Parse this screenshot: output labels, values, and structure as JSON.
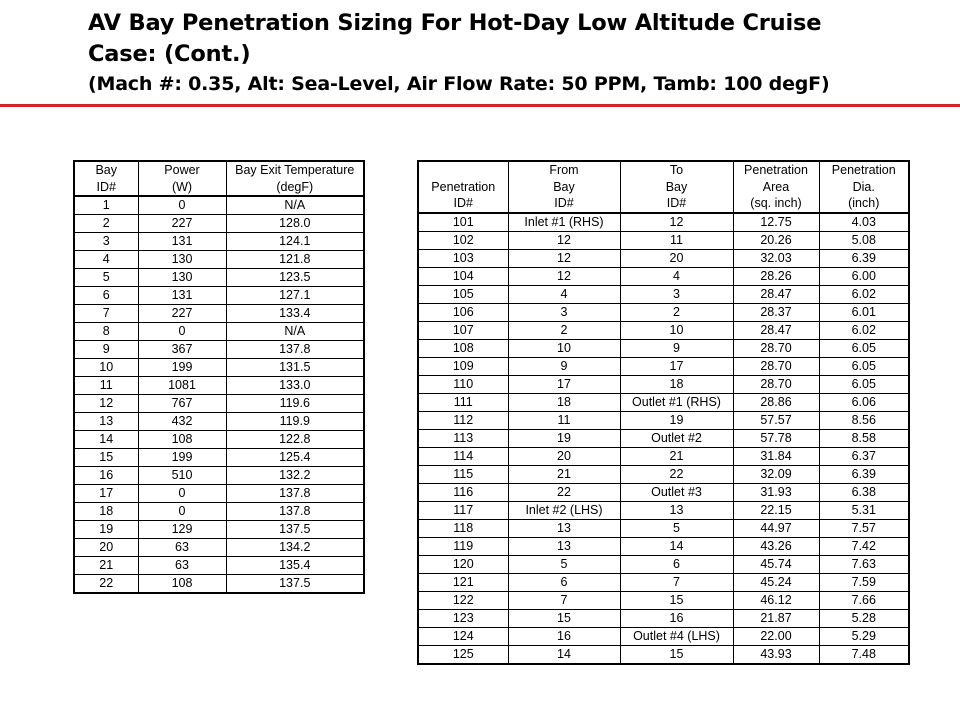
{
  "title": {
    "line1": "AV Bay Penetration Sizing For Hot-Day Low Altitude Cruise",
    "line2": "Case: (Cont.)",
    "line3": "(Mach #: 0.35, Alt: Sea-Level, Air Flow Rate: 50 PPM, Tamb: 100 degF)"
  },
  "accent_color": "#d2232a",
  "bay_table": {
    "headers": [
      [
        "Bay",
        "ID#"
      ],
      [
        "Power",
        "(W)"
      ],
      [
        "Bay Exit Temperature",
        "(degF)"
      ]
    ],
    "rows": [
      [
        "1",
        "0",
        "N/A"
      ],
      [
        "2",
        "227",
        "128.0"
      ],
      [
        "3",
        "131",
        "124.1"
      ],
      [
        "4",
        "130",
        "121.8"
      ],
      [
        "5",
        "130",
        "123.5"
      ],
      [
        "6",
        "131",
        "127.1"
      ],
      [
        "7",
        "227",
        "133.4"
      ],
      [
        "8",
        "0",
        "N/A"
      ],
      [
        "9",
        "367",
        "137.8"
      ],
      [
        "10",
        "199",
        "131.5"
      ],
      [
        "11",
        "1081",
        "133.0"
      ],
      [
        "12",
        "767",
        "119.6"
      ],
      [
        "13",
        "432",
        "119.9"
      ],
      [
        "14",
        "108",
        "122.8"
      ],
      [
        "15",
        "199",
        "125.4"
      ],
      [
        "16",
        "510",
        "132.2"
      ],
      [
        "17",
        "0",
        "137.8"
      ],
      [
        "18",
        "0",
        "137.8"
      ],
      [
        "19",
        "129",
        "137.5"
      ],
      [
        "20",
        "63",
        "134.2"
      ],
      [
        "21",
        "63",
        "135.4"
      ],
      [
        "22",
        "108",
        "137.5"
      ]
    ]
  },
  "penetration_table": {
    "headers": [
      [
        "",
        "Penetration",
        "ID#"
      ],
      [
        "From",
        "Bay",
        "ID#"
      ],
      [
        "To",
        "Bay",
        "ID#"
      ],
      [
        "Penetration",
        "Area",
        "(sq. inch)"
      ],
      [
        "Penetration",
        "Dia.",
        "(inch)"
      ]
    ],
    "rows": [
      [
        "101",
        "Inlet #1 (RHS)",
        "12",
        "12.75",
        "4.03"
      ],
      [
        "102",
        "12",
        "11",
        "20.26",
        "5.08"
      ],
      [
        "103",
        "12",
        "20",
        "32.03",
        "6.39"
      ],
      [
        "104",
        "12",
        "4",
        "28.26",
        "6.00"
      ],
      [
        "105",
        "4",
        "3",
        "28.47",
        "6.02"
      ],
      [
        "106",
        "3",
        "2",
        "28.37",
        "6.01"
      ],
      [
        "107",
        "2",
        "10",
        "28.47",
        "6.02"
      ],
      [
        "108",
        "10",
        "9",
        "28.70",
        "6.05"
      ],
      [
        "109",
        "9",
        "17",
        "28.70",
        "6.05"
      ],
      [
        "110",
        "17",
        "18",
        "28.70",
        "6.05"
      ],
      [
        "111",
        "18",
        "Outlet #1 (RHS)",
        "28.86",
        "6.06"
      ],
      [
        "112",
        "11",
        "19",
        "57.57",
        "8.56"
      ],
      [
        "113",
        "19",
        "Outlet #2",
        "57.78",
        "8.58"
      ],
      [
        "114",
        "20",
        "21",
        "31.84",
        "6.37"
      ],
      [
        "115",
        "21",
        "22",
        "32.09",
        "6.39"
      ],
      [
        "116",
        "22",
        "Outlet #3",
        "31.93",
        "6.38"
      ],
      [
        "117",
        "Inlet #2 (LHS)",
        "13",
        "22.15",
        "5.31"
      ],
      [
        "118",
        "13",
        "5",
        "44.97",
        "7.57"
      ],
      [
        "119",
        "13",
        "14",
        "43.26",
        "7.42"
      ],
      [
        "120",
        "5",
        "6",
        "45.74",
        "7.63"
      ],
      [
        "121",
        "6",
        "7",
        "45.24",
        "7.59"
      ],
      [
        "122",
        "7",
        "15",
        "46.12",
        "7.66"
      ],
      [
        "123",
        "15",
        "16",
        "21.87",
        "5.28"
      ],
      [
        "124",
        "16",
        "Outlet #4 (LHS)",
        "22.00",
        "5.29"
      ],
      [
        "125",
        "14",
        "15",
        "43.93",
        "7.48"
      ]
    ]
  }
}
